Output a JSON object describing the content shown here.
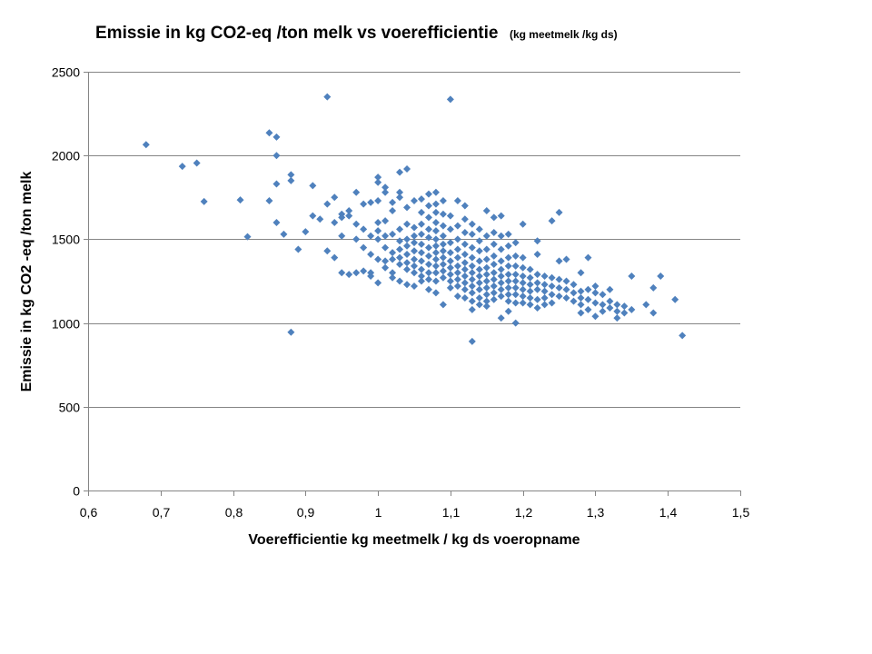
{
  "chart_data": {
    "type": "scatter",
    "title": "Emissie in kg CO2-eq /ton melk vs voerefficientie",
    "subtitle": "(kg meetmelk /kg ds)",
    "xlabel": "Voerefficientie kg meetmelk / kg ds voeropname",
    "ylabel": "Emissie in kg CO2 -eq /ton melk",
    "xlim": [
      0.6,
      1.5
    ],
    "ylim": [
      0,
      2500
    ],
    "x_ticks": [
      "0,6",
      "0,7",
      "0,8",
      "0,9",
      "1",
      "1,1",
      "1,2",
      "1,3",
      "1,4",
      "1,5"
    ],
    "y_ticks": [
      "0",
      "500",
      "1000",
      "1500",
      "2000",
      "2500"
    ],
    "grid": "horizontal",
    "legend": "none",
    "marker": "diamond",
    "color": "#4F81BD",
    "points": [
      [
        0.68,
        2065
      ],
      [
        0.73,
        1935
      ],
      [
        0.75,
        1955
      ],
      [
        0.76,
        1725
      ],
      [
        0.81,
        1735
      ],
      [
        0.82,
        1515
      ],
      [
        0.85,
        2135
      ],
      [
        0.86,
        2110
      ],
      [
        0.86,
        2000
      ],
      [
        0.86,
        1830
      ],
      [
        0.85,
        1730
      ],
      [
        0.86,
        1600
      ],
      [
        0.87,
        1530
      ],
      [
        0.88,
        1885
      ],
      [
        0.88,
        1850
      ],
      [
        0.88,
        945
      ],
      [
        0.89,
        1440
      ],
      [
        0.9,
        1545
      ],
      [
        0.91,
        1820
      ],
      [
        0.91,
        1640
      ],
      [
        0.92,
        1620
      ],
      [
        0.93,
        2350
      ],
      [
        0.93,
        1710
      ],
      [
        0.93,
        1430
      ],
      [
        0.94,
        1750
      ],
      [
        0.94,
        1600
      ],
      [
        0.94,
        1390
      ],
      [
        0.95,
        1650
      ],
      [
        0.95,
        1630
      ],
      [
        0.95,
        1520
      ],
      [
        0.95,
        1300
      ],
      [
        0.96,
        1670
      ],
      [
        0.96,
        1640
      ],
      [
        0.96,
        1290
      ],
      [
        0.97,
        1780
      ],
      [
        0.97,
        1590
      ],
      [
        0.97,
        1500
      ],
      [
        0.97,
        1300
      ],
      [
        0.98,
        1710
      ],
      [
        0.98,
        1560
      ],
      [
        0.98,
        1450
      ],
      [
        0.98,
        1310
      ],
      [
        0.99,
        1720
      ],
      [
        0.99,
        1520
      ],
      [
        0.99,
        1410
      ],
      [
        0.99,
        1300
      ],
      [
        0.99,
        1280
      ],
      [
        1.0,
        1870
      ],
      [
        1.0,
        1840
      ],
      [
        1.0,
        1730
      ],
      [
        1.0,
        1600
      ],
      [
        1.0,
        1550
      ],
      [
        1.0,
        1500
      ],
      [
        1.0,
        1380
      ],
      [
        1.0,
        1240
      ],
      [
        1.01,
        1810
      ],
      [
        1.01,
        1780
      ],
      [
        1.01,
        1610
      ],
      [
        1.01,
        1520
      ],
      [
        1.01,
        1450
      ],
      [
        1.01,
        1370
      ],
      [
        1.01,
        1330
      ],
      [
        1.02,
        1720
      ],
      [
        1.02,
        1670
      ],
      [
        1.02,
        1530
      ],
      [
        1.02,
        1420
      ],
      [
        1.02,
        1380
      ],
      [
        1.02,
        1300
      ],
      [
        1.02,
        1270
      ],
      [
        1.03,
        1900
      ],
      [
        1.03,
        1780
      ],
      [
        1.03,
        1750
      ],
      [
        1.03,
        1560
      ],
      [
        1.03,
        1490
      ],
      [
        1.03,
        1440
      ],
      [
        1.03,
        1390
      ],
      [
        1.03,
        1350
      ],
      [
        1.03,
        1250
      ],
      [
        1.04,
        1920
      ],
      [
        1.04,
        1690
      ],
      [
        1.04,
        1590
      ],
      [
        1.04,
        1500
      ],
      [
        1.04,
        1460
      ],
      [
        1.04,
        1410
      ],
      [
        1.04,
        1360
      ],
      [
        1.04,
        1320
      ],
      [
        1.04,
        1230
      ],
      [
        1.05,
        1730
      ],
      [
        1.05,
        1570
      ],
      [
        1.05,
        1520
      ],
      [
        1.05,
        1480
      ],
      [
        1.05,
        1430
      ],
      [
        1.05,
        1380
      ],
      [
        1.05,
        1340
      ],
      [
        1.05,
        1300
      ],
      [
        1.05,
        1220
      ],
      [
        1.06,
        1740
      ],
      [
        1.06,
        1660
      ],
      [
        1.06,
        1590
      ],
      [
        1.06,
        1530
      ],
      [
        1.06,
        1470
      ],
      [
        1.06,
        1420
      ],
      [
        1.06,
        1370
      ],
      [
        1.06,
        1320
      ],
      [
        1.06,
        1280
      ],
      [
        1.06,
        1250
      ],
      [
        1.07,
        1770
      ],
      [
        1.07,
        1700
      ],
      [
        1.07,
        1630
      ],
      [
        1.07,
        1560
      ],
      [
        1.07,
        1510
      ],
      [
        1.07,
        1450
      ],
      [
        1.07,
        1400
      ],
      [
        1.07,
        1350
      ],
      [
        1.07,
        1300
      ],
      [
        1.07,
        1260
      ],
      [
        1.07,
        1200
      ],
      [
        1.08,
        1780
      ],
      [
        1.08,
        1710
      ],
      [
        1.08,
        1660
      ],
      [
        1.08,
        1600
      ],
      [
        1.08,
        1550
      ],
      [
        1.08,
        1500
      ],
      [
        1.08,
        1460
      ],
      [
        1.08,
        1420
      ],
      [
        1.08,
        1380
      ],
      [
        1.08,
        1340
      ],
      [
        1.08,
        1300
      ],
      [
        1.08,
        1250
      ],
      [
        1.08,
        1180
      ],
      [
        1.09,
        1730
      ],
      [
        1.09,
        1650
      ],
      [
        1.09,
        1580
      ],
      [
        1.09,
        1520
      ],
      [
        1.09,
        1470
      ],
      [
        1.09,
        1430
      ],
      [
        1.09,
        1390
      ],
      [
        1.09,
        1350
      ],
      [
        1.09,
        1310
      ],
      [
        1.09,
        1270
      ],
      [
        1.09,
        1110
      ],
      [
        1.1,
        2335
      ],
      [
        1.1,
        1640
      ],
      [
        1.1,
        1560
      ],
      [
        1.1,
        1480
      ],
      [
        1.1,
        1420
      ],
      [
        1.1,
        1370
      ],
      [
        1.1,
        1330
      ],
      [
        1.1,
        1290
      ],
      [
        1.1,
        1250
      ],
      [
        1.1,
        1210
      ],
      [
        1.11,
        1730
      ],
      [
        1.11,
        1580
      ],
      [
        1.11,
        1500
      ],
      [
        1.11,
        1440
      ],
      [
        1.11,
        1390
      ],
      [
        1.11,
        1340
      ],
      [
        1.11,
        1300
      ],
      [
        1.11,
        1260
      ],
      [
        1.11,
        1220
      ],
      [
        1.11,
        1160
      ],
      [
        1.12,
        1700
      ],
      [
        1.12,
        1620
      ],
      [
        1.12,
        1540
      ],
      [
        1.12,
        1470
      ],
      [
        1.12,
        1410
      ],
      [
        1.12,
        1360
      ],
      [
        1.12,
        1320
      ],
      [
        1.12,
        1280
      ],
      [
        1.12,
        1240
      ],
      [
        1.12,
        1200
      ],
      [
        1.12,
        1150
      ],
      [
        1.13,
        1590
      ],
      [
        1.13,
        1530
      ],
      [
        1.13,
        1450
      ],
      [
        1.13,
        1390
      ],
      [
        1.13,
        1340
      ],
      [
        1.13,
        1300
      ],
      [
        1.13,
        1260
      ],
      [
        1.13,
        1220
      ],
      [
        1.13,
        1180
      ],
      [
        1.13,
        1130
      ],
      [
        1.13,
        1080
      ],
      [
        1.13,
        890
      ],
      [
        1.14,
        1560
      ],
      [
        1.14,
        1490
      ],
      [
        1.14,
        1430
      ],
      [
        1.14,
        1370
      ],
      [
        1.14,
        1320
      ],
      [
        1.14,
        1280
      ],
      [
        1.14,
        1240
      ],
      [
        1.14,
        1200
      ],
      [
        1.14,
        1150
      ],
      [
        1.14,
        1110
      ],
      [
        1.15,
        1670
      ],
      [
        1.15,
        1520
      ],
      [
        1.15,
        1440
      ],
      [
        1.15,
        1380
      ],
      [
        1.15,
        1330
      ],
      [
        1.15,
        1290
      ],
      [
        1.15,
        1250
      ],
      [
        1.15,
        1210
      ],
      [
        1.15,
        1170
      ],
      [
        1.15,
        1130
      ],
      [
        1.15,
        1100
      ],
      [
        1.16,
        1630
      ],
      [
        1.16,
        1540
      ],
      [
        1.16,
        1470
      ],
      [
        1.16,
        1400
      ],
      [
        1.16,
        1350
      ],
      [
        1.16,
        1300
      ],
      [
        1.16,
        1260
      ],
      [
        1.16,
        1220
      ],
      [
        1.16,
        1180
      ],
      [
        1.16,
        1140
      ],
      [
        1.17,
        1640
      ],
      [
        1.17,
        1520
      ],
      [
        1.17,
        1440
      ],
      [
        1.17,
        1370
      ],
      [
        1.17,
        1320
      ],
      [
        1.17,
        1280
      ],
      [
        1.17,
        1240
      ],
      [
        1.17,
        1200
      ],
      [
        1.17,
        1160
      ],
      [
        1.17,
        1030
      ],
      [
        1.18,
        1530
      ],
      [
        1.18,
        1460
      ],
      [
        1.18,
        1390
      ],
      [
        1.18,
        1340
      ],
      [
        1.18,
        1290
      ],
      [
        1.18,
        1250
      ],
      [
        1.18,
        1210
      ],
      [
        1.18,
        1170
      ],
      [
        1.18,
        1130
      ],
      [
        1.18,
        1070
      ],
      [
        1.19,
        1480
      ],
      [
        1.19,
        1400
      ],
      [
        1.19,
        1340
      ],
      [
        1.19,
        1290
      ],
      [
        1.19,
        1250
      ],
      [
        1.19,
        1210
      ],
      [
        1.19,
        1170
      ],
      [
        1.19,
        1120
      ],
      [
        1.19,
        1000
      ],
      [
        1.2,
        1590
      ],
      [
        1.2,
        1390
      ],
      [
        1.2,
        1330
      ],
      [
        1.2,
        1280
      ],
      [
        1.2,
        1240
      ],
      [
        1.2,
        1200
      ],
      [
        1.2,
        1160
      ],
      [
        1.2,
        1120
      ],
      [
        1.21,
        1320
      ],
      [
        1.21,
        1270
      ],
      [
        1.21,
        1230
      ],
      [
        1.21,
        1190
      ],
      [
        1.21,
        1150
      ],
      [
        1.21,
        1110
      ],
      [
        1.22,
        1490
      ],
      [
        1.22,
        1410
      ],
      [
        1.22,
        1290
      ],
      [
        1.22,
        1240
      ],
      [
        1.22,
        1200
      ],
      [
        1.22,
        1140
      ],
      [
        1.22,
        1090
      ],
      [
        1.23,
        1280
      ],
      [
        1.23,
        1230
      ],
      [
        1.23,
        1190
      ],
      [
        1.23,
        1150
      ],
      [
        1.23,
        1110
      ],
      [
        1.24,
        1610
      ],
      [
        1.24,
        1270
      ],
      [
        1.24,
        1220
      ],
      [
        1.24,
        1170
      ],
      [
        1.24,
        1120
      ],
      [
        1.25,
        1660
      ],
      [
        1.25,
        1370
      ],
      [
        1.25,
        1260
      ],
      [
        1.25,
        1210
      ],
      [
        1.25,
        1160
      ],
      [
        1.26,
        1380
      ],
      [
        1.26,
        1250
      ],
      [
        1.26,
        1200
      ],
      [
        1.26,
        1150
      ],
      [
        1.27,
        1230
      ],
      [
        1.27,
        1180
      ],
      [
        1.27,
        1130
      ],
      [
        1.28,
        1300
      ],
      [
        1.28,
        1190
      ],
      [
        1.28,
        1150
      ],
      [
        1.28,
        1110
      ],
      [
        1.28,
        1060
      ],
      [
        1.29,
        1390
      ],
      [
        1.29,
        1200
      ],
      [
        1.29,
        1140
      ],
      [
        1.29,
        1080
      ],
      [
        1.3,
        1220
      ],
      [
        1.3,
        1180
      ],
      [
        1.3,
        1120
      ],
      [
        1.3,
        1040
      ],
      [
        1.31,
        1170
      ],
      [
        1.31,
        1110
      ],
      [
        1.31,
        1070
      ],
      [
        1.32,
        1200
      ],
      [
        1.32,
        1130
      ],
      [
        1.32,
        1090
      ],
      [
        1.33,
        1110
      ],
      [
        1.33,
        1070
      ],
      [
        1.33,
        1030
      ],
      [
        1.34,
        1100
      ],
      [
        1.34,
        1060
      ],
      [
        1.35,
        1280
      ],
      [
        1.35,
        1080
      ],
      [
        1.37,
        1110
      ],
      [
        1.38,
        1210
      ],
      [
        1.38,
        1060
      ],
      [
        1.39,
        1280
      ],
      [
        1.41,
        1140
      ],
      [
        1.42,
        925
      ]
    ]
  }
}
